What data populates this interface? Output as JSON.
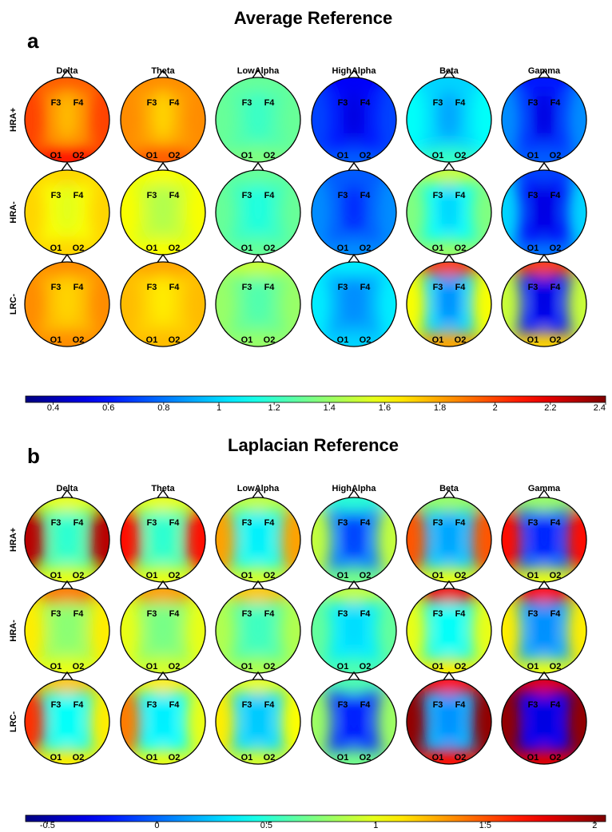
{
  "panels": [
    {
      "letter": "a",
      "title": "Average Reference",
      "bands": [
        "Delta",
        "Theta",
        "LowAlpha",
        "HighAlpha",
        "Beta",
        "Gamma"
      ],
      "groups": [
        "HRA+",
        "HRA-",
        "LRC-"
      ],
      "electrodes": [
        "F3",
        "F4",
        "O1",
        "O2"
      ],
      "colorbar": {
        "min": 0.3,
        "max": 2.4,
        "ticks": [
          "0.4",
          "0.6",
          "0.8",
          "1",
          "1.2",
          "1.4",
          "1.6",
          "1.8",
          "2",
          "2.2",
          "2.4"
        ],
        "tick_values": [
          0.4,
          0.6,
          0.8,
          1.0,
          1.2,
          1.4,
          1.6,
          1.8,
          2.0,
          2.2,
          2.4
        ]
      },
      "maps": [
        [
          {
            "center": 1.85,
            "front": 1.95,
            "back": 2.1,
            "left": 2.0,
            "right": 2.0,
            "midline": 1.75
          },
          {
            "center": 1.8,
            "front": 1.85,
            "back": 1.95,
            "left": 1.85,
            "right": 1.85,
            "midline": 1.7
          },
          {
            "center": 1.25,
            "front": 1.3,
            "back": 1.35,
            "left": 1.3,
            "right": 1.3,
            "midline": 1.2
          },
          {
            "center": 0.6,
            "front": 0.55,
            "back": 0.75,
            "left": 0.7,
            "right": 0.7,
            "midline": 0.5
          },
          {
            "center": 1.0,
            "front": 1.0,
            "back": 1.2,
            "left": 1.1,
            "right": 1.1,
            "midline": 0.9
          },
          {
            "center": 0.65,
            "front": 0.6,
            "back": 0.75,
            "left": 0.85,
            "right": 0.85,
            "midline": 0.5
          }
        ],
        [
          {
            "center": 1.6,
            "front": 1.7,
            "back": 1.7,
            "left": 1.7,
            "right": 1.7,
            "midline": 1.55
          },
          {
            "center": 1.5,
            "front": 1.6,
            "back": 1.6,
            "left": 1.6,
            "right": 1.6,
            "midline": 1.45
          },
          {
            "center": 1.2,
            "front": 1.3,
            "back": 1.3,
            "left": 1.3,
            "right": 1.3,
            "midline": 1.15
          },
          {
            "center": 0.75,
            "front": 0.75,
            "back": 0.85,
            "left": 0.85,
            "right": 0.85,
            "midline": 0.65
          },
          {
            "center": 1.1,
            "front": 1.5,
            "back": 1.4,
            "left": 1.35,
            "right": 1.35,
            "midline": 1.0
          },
          {
            "center": 0.55,
            "front": 0.7,
            "back": 0.8,
            "left": 1.0,
            "right": 1.0,
            "midline": 0.5
          }
        ],
        [
          {
            "center": 1.75,
            "front": 1.85,
            "back": 1.85,
            "left": 1.85,
            "right": 1.85,
            "midline": 1.7
          },
          {
            "center": 1.7,
            "front": 1.8,
            "back": 1.75,
            "left": 1.75,
            "right": 1.75,
            "midline": 1.65
          },
          {
            "center": 1.3,
            "front": 1.5,
            "back": 1.4,
            "left": 1.4,
            "right": 1.4,
            "midline": 1.25
          },
          {
            "center": 0.9,
            "front": 1.05,
            "back": 1.0,
            "left": 1.05,
            "right": 1.05,
            "midline": 0.85
          },
          {
            "center": 1.0,
            "front": 2.0,
            "back": 1.8,
            "left": 1.6,
            "right": 1.6,
            "midline": 0.85
          },
          {
            "center": 0.6,
            "front": 2.0,
            "back": 1.7,
            "left": 1.5,
            "right": 1.5,
            "midline": 0.5
          }
        ]
      ]
    },
    {
      "letter": "b",
      "title": "Laplacian Reference",
      "bands": [
        "Delta",
        "Theta",
        "LowAlpha",
        "HighAlpha",
        "Beta",
        "Gamma"
      ],
      "groups": [
        "HRA+",
        "HRA-",
        "LRC-"
      ],
      "electrodes": [
        "F3",
        "F4",
        "O1",
        "O2"
      ],
      "colorbar": {
        "min": -0.6,
        "max": 2.05,
        "ticks": [
          "-0.5",
          "0",
          "0.5",
          "1",
          "1.5",
          "2"
        ],
        "tick_values": [
          -0.5,
          0,
          0.5,
          1.0,
          1.5,
          2.0
        ]
      },
      "maps": [
        [
          {
            "center": 0.6,
            "front": 1.0,
            "back": 1.0,
            "left": 1.9,
            "right": 1.9,
            "midline": 0.5
          },
          {
            "center": 0.6,
            "front": 1.0,
            "back": 1.0,
            "left": 1.7,
            "right": 1.7,
            "midline": 0.5
          },
          {
            "center": 0.45,
            "front": 0.9,
            "back": 0.95,
            "left": 1.3,
            "right": 1.3,
            "midline": 0.35
          },
          {
            "center": 0.05,
            "front": 0.5,
            "back": 0.7,
            "left": 0.9,
            "right": 0.9,
            "midline": -0.1
          },
          {
            "center": 0.25,
            "front": 0.8,
            "back": 1.0,
            "left": 1.5,
            "right": 1.5,
            "midline": 0.15
          },
          {
            "center": -0.05,
            "front": 0.8,
            "back": 1.0,
            "left": 1.7,
            "right": 1.7,
            "midline": -0.2
          }
        ],
        [
          {
            "center": 0.8,
            "front": 1.4,
            "back": 1.0,
            "left": 1.1,
            "right": 1.1,
            "midline": 0.75
          },
          {
            "center": 0.75,
            "front": 1.3,
            "back": 0.95,
            "left": 1.0,
            "right": 1.0,
            "midline": 0.7
          },
          {
            "center": 0.6,
            "front": 1.2,
            "back": 0.85,
            "left": 0.85,
            "right": 0.85,
            "midline": 0.55
          },
          {
            "center": 0.35,
            "front": 0.9,
            "back": 0.6,
            "left": 0.65,
            "right": 0.65,
            "midline": 0.3
          },
          {
            "center": 0.45,
            "front": 1.75,
            "back": 1.1,
            "left": 1.0,
            "right": 1.0,
            "midline": 0.4
          },
          {
            "center": 0.15,
            "front": 1.7,
            "back": 1.0,
            "left": 1.1,
            "right": 1.1,
            "midline": 0.1
          }
        ],
        [
          {
            "center": 0.45,
            "front": 1.2,
            "back": 1.1,
            "left": 1.6,
            "right": 1.1,
            "midline": 0.4
          },
          {
            "center": 0.4,
            "front": 1.1,
            "back": 1.0,
            "left": 1.4,
            "right": 1.0,
            "midline": 0.35
          },
          {
            "center": 0.3,
            "front": 1.0,
            "back": 0.95,
            "left": 1.1,
            "right": 1.05,
            "midline": 0.25
          },
          {
            "center": -0.15,
            "front": 0.6,
            "back": 0.7,
            "left": 0.8,
            "right": 0.8,
            "midline": -0.2
          },
          {
            "center": 0.2,
            "front": 1.7,
            "back": 1.7,
            "left": 2.0,
            "right": 2.0,
            "midline": 0.1
          },
          {
            "center": -0.3,
            "front": 1.8,
            "back": 1.8,
            "left": 2.0,
            "right": 2.0,
            "midline": -0.35
          }
        ]
      ]
    }
  ]
}
